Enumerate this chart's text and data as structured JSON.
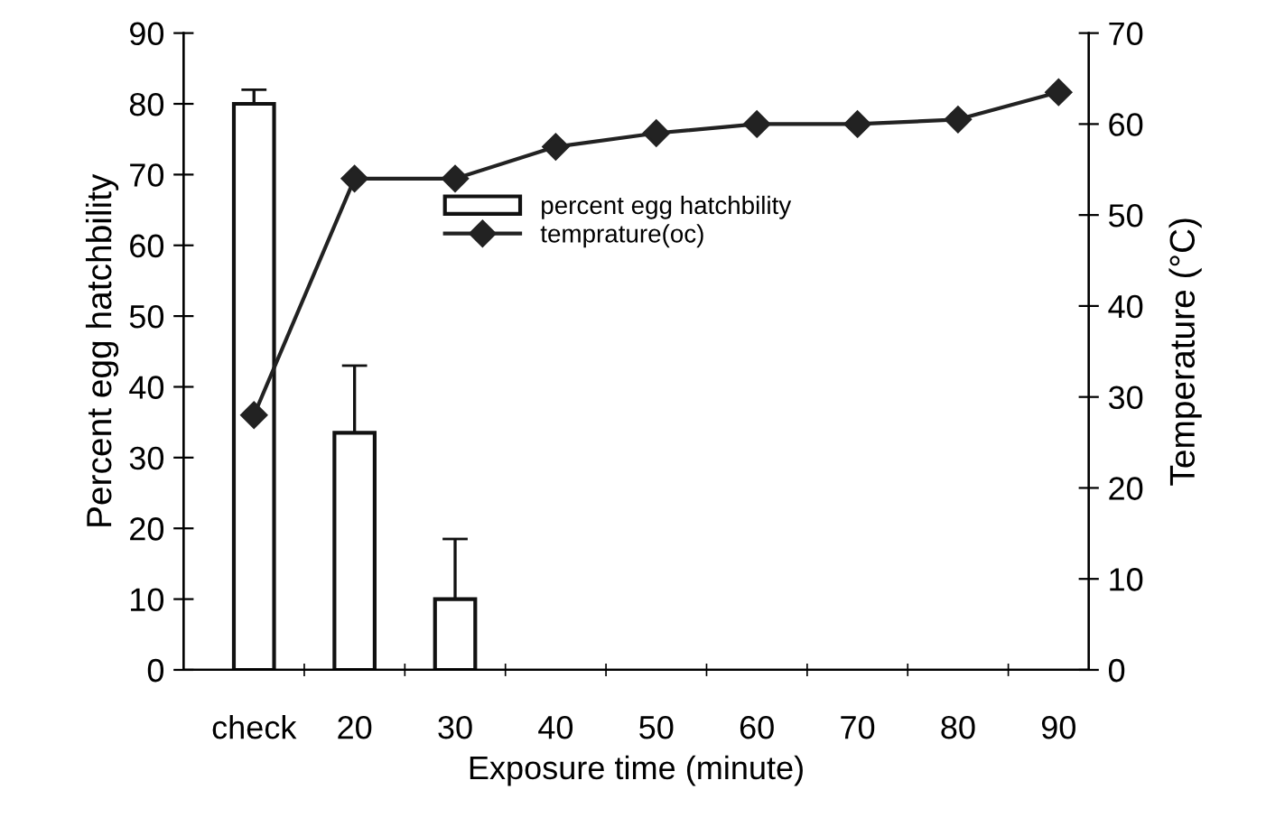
{
  "chart_data": {
    "type": "bar",
    "xlabel": "Exposure time (minute)",
    "ylabel": "Percent egg hatchbility",
    "y2label": "Temperature (°C)",
    "categories": [
      "check",
      "20",
      "30",
      "40",
      "50",
      "60",
      "70",
      "80",
      "90"
    ],
    "series": [
      {
        "name": "percent egg hatchbility",
        "color": "#ffffff",
        "values": [
          80,
          33.5,
          10,
          0,
          0,
          0,
          0,
          0,
          0
        ],
        "errors": [
          [
            80,
            82
          ],
          [
            33.5,
            43
          ],
          [
            10,
            18.5
          ],
          null,
          null,
          null,
          null,
          null,
          null
        ]
      },
      {
        "name": "temprature(oc)",
        "type": "line",
        "axis": "y2",
        "color": "#222222",
        "marker": "diamond",
        "values": [
          28,
          54,
          54,
          57.5,
          59,
          60,
          60,
          60.5,
          63.5
        ]
      }
    ],
    "ylim": [
      0,
      90
    ],
    "yticks": [
      0,
      10,
      20,
      30,
      40,
      50,
      60,
      70,
      80,
      90
    ],
    "y2lim": [
      0,
      70
    ],
    "y2ticks": [
      0,
      10,
      20,
      30,
      40,
      50,
      60,
      70
    ],
    "legend": "top",
    "grid": false
  }
}
